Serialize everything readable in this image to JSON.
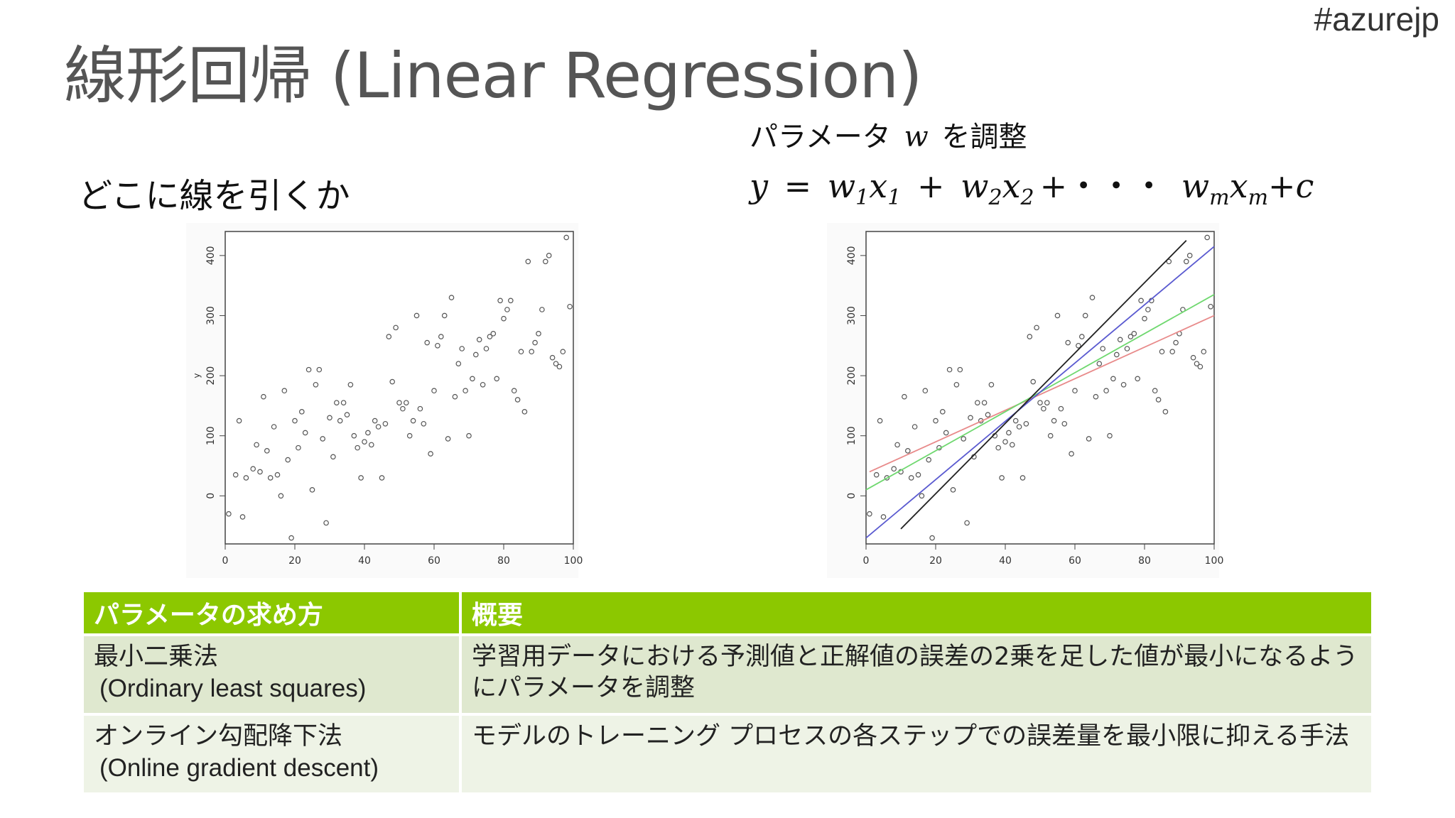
{
  "header": {
    "title": "線形回帰 (Linear Regression)",
    "hashtag": "#azurejp"
  },
  "subtitle": "どこに線を引くか",
  "parameter_note": {
    "prefix": "パラメータ",
    "variable": "w",
    "suffix": "を調整"
  },
  "formula": {
    "y": "y",
    "eq": "=",
    "t1_w": "w",
    "t1_wsub": "1",
    "t1_x": "x",
    "t1_xsub": "1",
    "plus": "+",
    "t2_w": "w",
    "t2_wsub": "2",
    "t2_x": "x",
    "t2_xsub": "2",
    "dots": "+・・・",
    "tm_w": "w",
    "tm_wsub": "m",
    "tm_x": "x",
    "tm_xsub": "m",
    "tail": "+c"
  },
  "table": {
    "headers": [
      "パラメータの求め方",
      "概要"
    ],
    "rows": [
      {
        "name": "最小二乗法",
        "name_en": "(Ordinary least squares)",
        "summary": "学習用データにおける予測値と正解値の誤差の2乗を足した値が最小になるようにパラメータを調整"
      },
      {
        "name": "オンライン勾配降下法",
        "name_en": "(Online gradient descent)",
        "summary": "モデルのトレーニング プロセスの各ステップでの誤差量を最小限に抑える手法"
      }
    ]
  },
  "chart_data": [
    {
      "type": "scatter",
      "xlim": [
        0,
        100
      ],
      "ylim": [
        -80,
        440
      ],
      "xticks": [
        0,
        20,
        40,
        60,
        80,
        100
      ],
      "yticks": [
        0,
        100,
        200,
        300,
        400
      ],
      "ylabel": "y",
      "point_color": "#555555",
      "x": [
        1,
        3,
        4,
        5,
        6,
        8,
        9,
        10,
        11,
        12,
        13,
        14,
        15,
        16,
        17,
        18,
        19,
        20,
        21,
        22,
        23,
        24,
        25,
        26,
        27,
        28,
        29,
        30,
        31,
        32,
        33,
        34,
        35,
        36,
        37,
        38,
        39,
        40,
        41,
        42,
        43,
        44,
        45,
        46,
        47,
        48,
        49,
        50,
        51,
        52,
        53,
        54,
        55,
        56,
        57,
        58,
        59,
        60,
        61,
        62,
        63,
        64,
        65,
        66,
        67,
        68,
        69,
        70,
        71,
        72,
        73,
        74,
        75,
        76,
        77,
        78,
        79,
        80,
        81,
        82,
        83,
        84,
        85,
        86,
        87,
        88,
        89,
        90,
        91,
        92,
        93,
        94,
        95,
        96,
        97,
        98,
        99
      ],
      "y": [
        -30,
        35,
        125,
        -35,
        30,
        45,
        85,
        40,
        165,
        75,
        30,
        115,
        35,
        0,
        175,
        60,
        -70,
        125,
        80,
        140,
        105,
        210,
        10,
        185,
        210,
        95,
        -45,
        130,
        65,
        155,
        125,
        155,
        135,
        185,
        100,
        80,
        30,
        90,
        105,
        85,
        125,
        115,
        30,
        120,
        265,
        190,
        280,
        155,
        145,
        155,
        100,
        125,
        300,
        145,
        120,
        255,
        70,
        175,
        250,
        265,
        300,
        95,
        330,
        165,
        220,
        245,
        175,
        100,
        195,
        235,
        260,
        185,
        245,
        265,
        270,
        195,
        325,
        295,
        310,
        325,
        175,
        160,
        240,
        140,
        390,
        240,
        255,
        270,
        310,
        390,
        400,
        230,
        220,
        215,
        240,
        430,
        315
      ],
      "curves": []
    },
    {
      "type": "scatter",
      "xlim": [
        0,
        100
      ],
      "ylim": [
        -80,
        440
      ],
      "xticks": [
        0,
        20,
        40,
        60,
        80,
        100
      ],
      "yticks": [
        0,
        100,
        200,
        300,
        400
      ],
      "point_color": "#555555",
      "x": [
        1,
        3,
        4,
        5,
        6,
        8,
        9,
        10,
        11,
        12,
        13,
        14,
        15,
        16,
        17,
        18,
        19,
        20,
        21,
        22,
        23,
        24,
        25,
        26,
        27,
        28,
        29,
        30,
        31,
        32,
        33,
        34,
        35,
        36,
        37,
        38,
        39,
        40,
        41,
        42,
        43,
        44,
        45,
        46,
        47,
        48,
        49,
        50,
        51,
        52,
        53,
        54,
        55,
        56,
        57,
        58,
        59,
        60,
        61,
        62,
        63,
        64,
        65,
        66,
        67,
        68,
        69,
        70,
        71,
        72,
        73,
        74,
        75,
        76,
        77,
        78,
        79,
        80,
        81,
        82,
        83,
        84,
        85,
        86,
        87,
        88,
        89,
        90,
        91,
        92,
        93,
        94,
        95,
        96,
        97,
        98,
        99
      ],
      "y": [
        -30,
        35,
        125,
        -35,
        30,
        45,
        85,
        40,
        165,
        75,
        30,
        115,
        35,
        0,
        175,
        60,
        -70,
        125,
        80,
        140,
        105,
        210,
        10,
        185,
        210,
        95,
        -45,
        130,
        65,
        155,
        125,
        155,
        135,
        185,
        100,
        80,
        30,
        90,
        105,
        85,
        125,
        115,
        30,
        120,
        265,
        190,
        280,
        155,
        145,
        155,
        100,
        125,
        300,
        145,
        120,
        255,
        70,
        175,
        250,
        265,
        300,
        95,
        330,
        165,
        220,
        245,
        175,
        100,
        195,
        235,
        260,
        185,
        245,
        265,
        270,
        195,
        325,
        295,
        310,
        325,
        175,
        160,
        240,
        140,
        390,
        240,
        255,
        270,
        310,
        390,
        400,
        230,
        220,
        215,
        240,
        430,
        315
      ],
      "curves": [
        {
          "color": "#e88a8a",
          "x": [
            1,
            100
          ],
          "y": [
            40,
            300
          ]
        },
        {
          "color": "#6fd86f",
          "x": [
            0,
            100
          ],
          "y": [
            10,
            335
          ]
        },
        {
          "color": "#5a5ad0",
          "x": [
            0,
            100
          ],
          "y": [
            -70,
            415
          ]
        },
        {
          "color": "#222222",
          "x": [
            10,
            92
          ],
          "y": [
            -55,
            425
          ]
        }
      ]
    }
  ]
}
